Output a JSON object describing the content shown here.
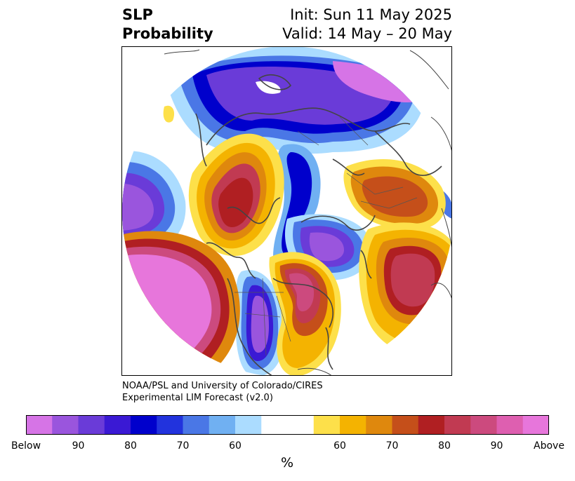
{
  "title": {
    "line1": "SLP",
    "line2": "Probability",
    "init": "Init: Sun 11 May 2025",
    "valid": "Valid: 14 May – 20 May"
  },
  "credits": {
    "line1": "NOAA/PSL and University of Colorado/CIRES",
    "line2": "Experimental LIM Forecast (v2.0)"
  },
  "colorbar": {
    "below_colors": [
      "#d674e6",
      "#9a55dd",
      "#6a3bd8",
      "#3a19d4",
      "#0000cc",
      "#2233dd",
      "#4a77e6",
      "#70b0f2",
      "#abdcff"
    ],
    "neutral_color": "#ffffff",
    "above_colors": [
      "#fde04a",
      "#f4b301",
      "#df880d",
      "#c54f1a",
      "#b01f22",
      "#c13a52",
      "#cc4a7e",
      "#de5fb0",
      "#e776db"
    ],
    "labels": [
      "Below",
      "90",
      "80",
      "70",
      "60",
      "60",
      "70",
      "80",
      "90",
      "Above"
    ],
    "unit": "%"
  }
}
